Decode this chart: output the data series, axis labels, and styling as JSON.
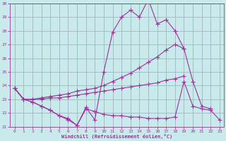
{
  "x": [
    0,
    1,
    2,
    3,
    4,
    5,
    6,
    7,
    8,
    9,
    10,
    11,
    12,
    13,
    14,
    15,
    16,
    17,
    18,
    19,
    20,
    21,
    22,
    23
  ],
  "line1": [
    23.8,
    23.0,
    22.8,
    22.5,
    22.2,
    21.8,
    21.5,
    21.1,
    22.4,
    21.5,
    25.0,
    27.9,
    29.0,
    29.5,
    29.0,
    30.3,
    28.5,
    28.8,
    28.0,
    26.7,
    24.3,
    22.5,
    22.3,
    null
  ],
  "line2": [
    23.8,
    23.0,
    23.0,
    23.1,
    23.2,
    23.3,
    23.4,
    23.6,
    23.7,
    23.8,
    24.0,
    24.3,
    24.6,
    24.9,
    25.3,
    25.7,
    26.1,
    26.6,
    27.0,
    26.7,
    null,
    null,
    null,
    null
  ],
  "line3": [
    23.8,
    23.0,
    23.0,
    23.0,
    23.1,
    23.1,
    23.2,
    23.3,
    23.4,
    23.5,
    23.6,
    23.7,
    23.8,
    23.9,
    24.0,
    24.1,
    24.2,
    24.4,
    24.5,
    24.7,
    null,
    null,
    null,
    null
  ],
  "line4": [
    23.8,
    23.0,
    22.8,
    22.5,
    22.2,
    21.8,
    21.6,
    21.1,
    22.3,
    22.1,
    21.9,
    21.8,
    21.8,
    21.7,
    21.7,
    21.6,
    21.6,
    21.6,
    21.7,
    24.3,
    22.5,
    22.3,
    22.2,
    21.5
  ],
  "xlim": [
    0,
    23
  ],
  "ylim": [
    21,
    30
  ],
  "yticks": [
    21,
    22,
    23,
    24,
    25,
    26,
    27,
    28,
    29,
    30
  ],
  "xticks": [
    0,
    1,
    2,
    3,
    4,
    5,
    6,
    7,
    8,
    9,
    10,
    11,
    12,
    13,
    14,
    15,
    16,
    17,
    18,
    19,
    20,
    21,
    22,
    23
  ],
  "xlabel": "Windchill (Refroidissement éolien,°C)",
  "line_color": "#993399",
  "bg_color": "#c8eaea",
  "grid_color": "#99aabb",
  "marker": "+",
  "markersize": 4,
  "linewidth": 0.8
}
